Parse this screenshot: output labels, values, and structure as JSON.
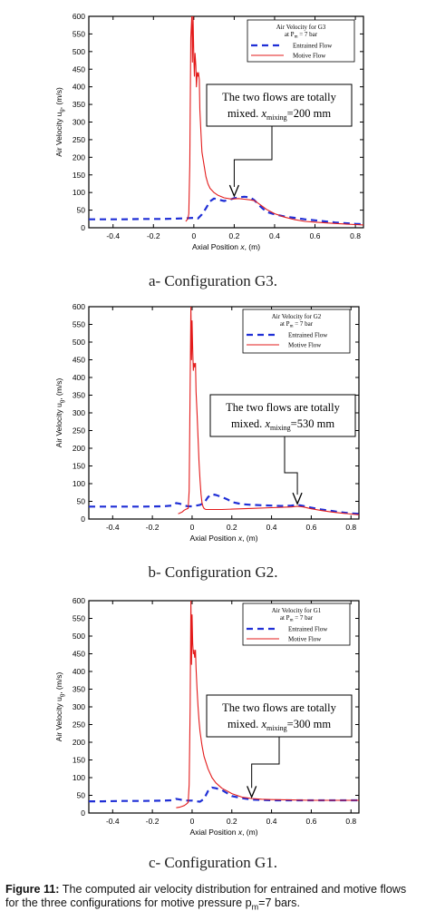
{
  "chart_data": [
    {
      "type": "line",
      "subplot_caption": "a- Configuration G3.",
      "xlabel_prefix": "Axial Position ",
      "xlabel_var": "x",
      "xlabel_suffix": ", (m)",
      "ylabel": "Air Velocity u",
      "ylabel_sub": "g",
      "ylabel_unit": ", (m/s)",
      "xlim": [
        -0.52,
        0.84
      ],
      "ylim": [
        0,
        600
      ],
      "xticks": [
        -0.4,
        -0.2,
        0,
        0.2,
        0.4,
        0.6,
        0.8
      ],
      "xtick_labels": [
        "-0.4",
        "-0.2",
        "0",
        "0.2",
        "0.4",
        "0.6",
        "0.8"
      ],
      "yticks": [
        0,
        50,
        100,
        150,
        200,
        250,
        300,
        350,
        400,
        450,
        500,
        550,
        600
      ],
      "ytick_labels": [
        "0",
        "50",
        "100",
        "150",
        "200",
        "250",
        "300",
        "350",
        "400",
        "450",
        "500",
        "550",
        "600"
      ],
      "legend": {
        "title_line1": "Air Velocity for G3",
        "title_line2": "at P",
        "title_line2_sub": "m",
        "title_line2_rest": " = 7 bar",
        "placement": "top-right",
        "entries": [
          "Entrained Flow",
          "Motive Flow"
        ]
      },
      "annotation": {
        "line1": "The two flows are totally",
        "line2_prefix": "mixed. ",
        "line2_var": "x",
        "line2_sub": "mixing",
        "line2_value": "=200 mm",
        "arrow_x": 0.2,
        "arrow_y": 85
      },
      "series": [
        {
          "name": "Entrained Flow",
          "color": "#1f2fd6",
          "dash": "dashed",
          "x": [
            -0.52,
            -0.45,
            -0.35,
            -0.25,
            -0.15,
            -0.08,
            -0.04,
            0.0,
            0.02,
            0.04,
            0.06,
            0.08,
            0.1,
            0.12,
            0.15,
            0.18,
            0.2,
            0.22,
            0.25,
            0.28,
            0.3,
            0.33,
            0.36,
            0.4,
            0.45,
            0.5,
            0.55,
            0.6,
            0.7,
            0.8,
            0.84
          ],
          "y": [
            24,
            24,
            24,
            25,
            25,
            26,
            27,
            28,
            26,
            38,
            55,
            75,
            83,
            80,
            76,
            80,
            84,
            86,
            88,
            86,
            78,
            60,
            45,
            38,
            32,
            28,
            24,
            21,
            15,
            11,
            10
          ]
        },
        {
          "name": "Motive Flow",
          "color": "#e31b1b",
          "dash": "solid",
          "x": [
            -0.04,
            -0.03,
            -0.025,
            -0.02,
            -0.015,
            -0.01,
            -0.007,
            -0.004,
            0.0,
            0.003,
            0.006,
            0.01,
            0.013,
            0.017,
            0.02,
            0.023,
            0.027,
            0.03,
            0.035,
            0.04,
            0.05,
            0.06,
            0.07,
            0.08,
            0.1,
            0.12,
            0.15,
            0.18,
            0.2,
            0.22,
            0.25,
            0.28,
            0.3,
            0.33,
            0.36,
            0.4,
            0.45,
            0.5,
            0.55,
            0.6,
            0.7,
            0.8,
            0.84
          ],
          "y": [
            18,
            25,
            40,
            180,
            540,
            600,
            470,
            600,
            480,
            430,
            495,
            460,
            400,
            440,
            430,
            440,
            420,
            335,
            270,
            215,
            180,
            145,
            125,
            112,
            100,
            92,
            85,
            82,
            82,
            83,
            81,
            79,
            77,
            65,
            52,
            40,
            30,
            23,
            18,
            16,
            12,
            9,
            8
          ]
        }
      ]
    },
    {
      "type": "line",
      "subplot_caption": "b- Configuration G2.",
      "xlabel_prefix": "Axial Position ",
      "xlabel_var": "x",
      "xlabel_suffix": ", (m)",
      "ylabel": "Air Velocity u",
      "ylabel_sub": "g",
      "ylabel_unit": ", (m/s)",
      "xlim": [
        -0.52,
        0.84
      ],
      "ylim": [
        0,
        600
      ],
      "xticks": [
        -0.4,
        -0.2,
        0,
        0.2,
        0.4,
        0.6,
        0.8
      ],
      "xtick_labels": [
        "-0.4",
        "-0.2",
        "0",
        "0.2",
        "0.4",
        "0.6",
        "0.8"
      ],
      "yticks": [
        0,
        50,
        100,
        150,
        200,
        250,
        300,
        350,
        400,
        450,
        500,
        550,
        600
      ],
      "ytick_labels": [
        "0",
        "50",
        "100",
        "150",
        "200",
        "250",
        "300",
        "350",
        "400",
        "450",
        "500",
        "550",
        "600"
      ],
      "legend": {
        "title_line1": "Air Velocity for G2",
        "title_line2": "at P",
        "title_line2_sub": "m",
        "title_line2_rest": " = 7 bar",
        "placement": "top-right",
        "entries": [
          "Entrained Flow",
          "Motive Flow"
        ]
      },
      "annotation": {
        "line1": "The two flows are totally",
        "line2_prefix": "mixed. ",
        "line2_var": "x",
        "line2_sub": "mixing",
        "line2_value": "=530 mm",
        "arrow_x": 0.53,
        "arrow_y": 38
      },
      "series": [
        {
          "name": "Entrained Flow",
          "color": "#1f2fd6",
          "dash": "dashed",
          "x": [
            -0.52,
            -0.45,
            -0.35,
            -0.25,
            -0.15,
            -0.1,
            -0.08,
            -0.06,
            -0.04,
            -0.02,
            0.0,
            0.02,
            0.04,
            0.06,
            0.08,
            0.1,
            0.12,
            0.15,
            0.18,
            0.2,
            0.25,
            0.3,
            0.35,
            0.4,
            0.45,
            0.5,
            0.53,
            0.56,
            0.6,
            0.65,
            0.7,
            0.75,
            0.8,
            0.84
          ],
          "y": [
            35,
            35,
            35,
            35,
            36,
            38,
            45,
            43,
            38,
            36,
            36,
            38,
            40,
            45,
            62,
            70,
            68,
            62,
            55,
            48,
            42,
            40,
            39,
            38,
            37,
            38,
            40,
            37,
            32,
            27,
            23,
            19,
            16,
            15
          ]
        },
        {
          "name": "Motive Flow",
          "color": "#e31b1b",
          "dash": "solid",
          "x": [
            -0.07,
            -0.05,
            -0.04,
            -0.03,
            -0.02,
            -0.015,
            -0.01,
            -0.006,
            -0.003,
            0.0,
            0.003,
            0.006,
            0.01,
            0.013,
            0.017,
            0.02,
            0.025,
            0.03,
            0.035,
            0.04,
            0.045,
            0.05,
            0.055,
            0.06,
            0.065,
            0.07,
            0.08,
            0.1,
            0.15,
            0.2,
            0.3,
            0.4,
            0.5,
            0.53,
            0.56,
            0.6,
            0.65,
            0.7,
            0.75,
            0.8,
            0.84
          ],
          "y": [
            15,
            20,
            25,
            28,
            30,
            80,
            380,
            600,
            450,
            560,
            480,
            420,
            440,
            430,
            440,
            360,
            300,
            230,
            160,
            110,
            70,
            45,
            35,
            30,
            28,
            27,
            27,
            27,
            27,
            28,
            30,
            32,
            34,
            36,
            34,
            29,
            24,
            20,
            17,
            14,
            12
          ]
        }
      ]
    },
    {
      "type": "line",
      "subplot_caption": "c- Configuration G1.",
      "xlabel_prefix": "Axial Position ",
      "xlabel_var": "x",
      "xlabel_suffix": ", (m)",
      "ylabel": "Air Velocity u",
      "ylabel_sub": "g",
      "ylabel_unit": ", (m/s)",
      "xlim": [
        -0.52,
        0.84
      ],
      "ylim": [
        0,
        600
      ],
      "xticks": [
        -0.4,
        -0.2,
        0,
        0.2,
        0.4,
        0.6,
        0.8
      ],
      "xtick_labels": [
        "-0.4",
        "-0.2",
        "0",
        "0.2",
        "0.4",
        "0.6",
        "0.8"
      ],
      "yticks": [
        0,
        50,
        100,
        150,
        200,
        250,
        300,
        350,
        400,
        450,
        500,
        550,
        600
      ],
      "ytick_labels": [
        "0",
        "50",
        "100",
        "150",
        "200",
        "250",
        "300",
        "350",
        "400",
        "450",
        "500",
        "550",
        "600"
      ],
      "legend": {
        "title_line1": "Air Velocity for G1",
        "title_line2": "at P",
        "title_line2_sub": "m",
        "title_line2_rest": " = 7 bar",
        "placement": "top-right",
        "entries": [
          "Entrained Flow",
          "Motive Flow"
        ]
      },
      "annotation": {
        "line1": "The two flows are totally",
        "line2_prefix": "mixed. ",
        "line2_var": "x",
        "line2_sub": "mixing",
        "line2_value": "=300 mm",
        "arrow_x": 0.3,
        "arrow_y": 40
      },
      "series": [
        {
          "name": "Entrained Flow",
          "color": "#1f2fd6",
          "dash": "dashed",
          "x": [
            -0.52,
            -0.45,
            -0.35,
            -0.25,
            -0.15,
            -0.1,
            -0.08,
            -0.06,
            -0.04,
            -0.02,
            0.0,
            0.02,
            0.04,
            0.06,
            0.08,
            0.1,
            0.12,
            0.15,
            0.18,
            0.2,
            0.25,
            0.3,
            0.35,
            0.4,
            0.5,
            0.6,
            0.7,
            0.8,
            0.84
          ],
          "y": [
            33,
            33,
            34,
            34,
            35,
            36,
            40,
            38,
            36,
            35,
            35,
            33,
            32,
            40,
            62,
            72,
            70,
            65,
            55,
            48,
            42,
            38,
            37,
            36,
            36,
            36,
            36,
            36,
            36
          ]
        },
        {
          "name": "Motive Flow",
          "color": "#e31b1b",
          "dash": "solid",
          "x": [
            -0.08,
            -0.06,
            -0.05,
            -0.04,
            -0.03,
            -0.02,
            -0.015,
            -0.01,
            -0.006,
            -0.003,
            0.0,
            0.003,
            0.006,
            0.01,
            0.013,
            0.017,
            0.02,
            0.025,
            0.03,
            0.035,
            0.04,
            0.05,
            0.06,
            0.08,
            0.1,
            0.12,
            0.15,
            0.2,
            0.25,
            0.3,
            0.35,
            0.4,
            0.5,
            0.6,
            0.7,
            0.8,
            0.84
          ],
          "y": [
            15,
            17,
            19,
            21,
            25,
            30,
            80,
            300,
            600,
            420,
            560,
            480,
            450,
            460,
            440,
            460,
            410,
            350,
            300,
            260,
            230,
            190,
            160,
            125,
            100,
            85,
            70,
            55,
            45,
            41,
            39,
            38,
            37,
            36,
            36,
            36,
            36
          ]
        }
      ]
    }
  ],
  "figure_caption": {
    "label": "Figure 11:",
    "text": " The computed air velocity distribution for entrained and motive flows for the three configurations for motive pressure p",
    "sub": "m",
    "text_end": "=7 bars."
  }
}
